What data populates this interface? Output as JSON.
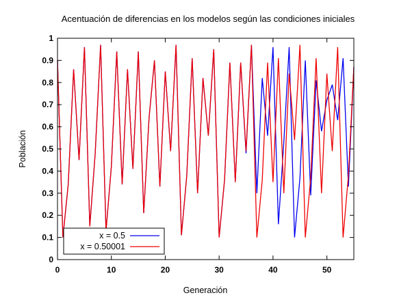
{
  "chart_data": {
    "type": "line",
    "title": "Acentuación de diferencias en los modelos según las condiciones iniciales",
    "xlabel": "Generación",
    "ylabel": "Población",
    "xlim": [
      0,
      55
    ],
    "ylim": [
      0,
      1
    ],
    "xticks": [
      "0",
      "10",
      "20",
      "30",
      "40",
      "50"
    ],
    "yticks": [
      "0",
      "0.1",
      "0.2",
      "0.3",
      "0.4",
      "0.5",
      "0.6",
      "0.7",
      "0.8",
      "0.9",
      "1"
    ],
    "grid": false,
    "legend_position": "bottom-left",
    "series": [
      {
        "name": "x = 0.5",
        "color": "#0000ee",
        "x": [
          0,
          1,
          2,
          3,
          4,
          5,
          6,
          7,
          8,
          9,
          10,
          11,
          12,
          13,
          14,
          15,
          16,
          17,
          18,
          19,
          20,
          21,
          22,
          23,
          24,
          25,
          26,
          27,
          28,
          29,
          30,
          31,
          32,
          33,
          34,
          35,
          36,
          37,
          38,
          39,
          40,
          41,
          42,
          43,
          44,
          45,
          46,
          47,
          48,
          49,
          50,
          51,
          52,
          53,
          54,
          55
        ],
        "values": [
          0.9,
          0.1,
          0.34,
          0.86,
          0.45,
          0.96,
          0.15,
          0.48,
          0.97,
          0.13,
          0.42,
          0.94,
          0.34,
          0.86,
          0.41,
          0.94,
          0.21,
          0.64,
          0.9,
          0.33,
          0.85,
          0.49,
          0.97,
          0.11,
          0.38,
          0.91,
          0.3,
          0.82,
          0.56,
          0.95,
          0.1,
          0.36,
          0.89,
          0.35,
          0.89,
          0.48,
          0.97,
          0.3,
          0.82,
          0.56,
          0.96,
          0.16,
          0.53,
          0.96,
          0.1,
          0.37,
          0.9,
          0.29,
          0.81,
          0.58,
          0.72,
          0.79,
          0.63,
          0.91,
          0.33,
          0.87
        ]
      },
      {
        "name": "x = 0.50001",
        "color": "#ee0000",
        "x": [
          0,
          1,
          2,
          3,
          4,
          5,
          6,
          7,
          8,
          9,
          10,
          11,
          12,
          13,
          14,
          15,
          16,
          17,
          18,
          19,
          20,
          21,
          22,
          23,
          24,
          25,
          26,
          27,
          28,
          29,
          30,
          31,
          32,
          33,
          34,
          35,
          36,
          37,
          38,
          39,
          40,
          41,
          42,
          43,
          44,
          45,
          46,
          47,
          48,
          49,
          50,
          51,
          52,
          53,
          54,
          55
        ],
        "values": [
          0.9,
          0.1,
          0.34,
          0.86,
          0.45,
          0.96,
          0.15,
          0.48,
          0.97,
          0.13,
          0.42,
          0.94,
          0.34,
          0.86,
          0.41,
          0.94,
          0.21,
          0.64,
          0.9,
          0.33,
          0.85,
          0.49,
          0.97,
          0.11,
          0.38,
          0.91,
          0.3,
          0.82,
          0.56,
          0.95,
          0.1,
          0.36,
          0.89,
          0.35,
          0.89,
          0.49,
          0.97,
          0.1,
          0.36,
          0.89,
          0.35,
          0.91,
          0.3,
          0.84,
          0.54,
          0.97,
          0.1,
          0.37,
          0.91,
          0.3,
          0.84,
          0.49,
          0.96,
          0.1,
          0.38,
          0.87
        ]
      }
    ]
  }
}
